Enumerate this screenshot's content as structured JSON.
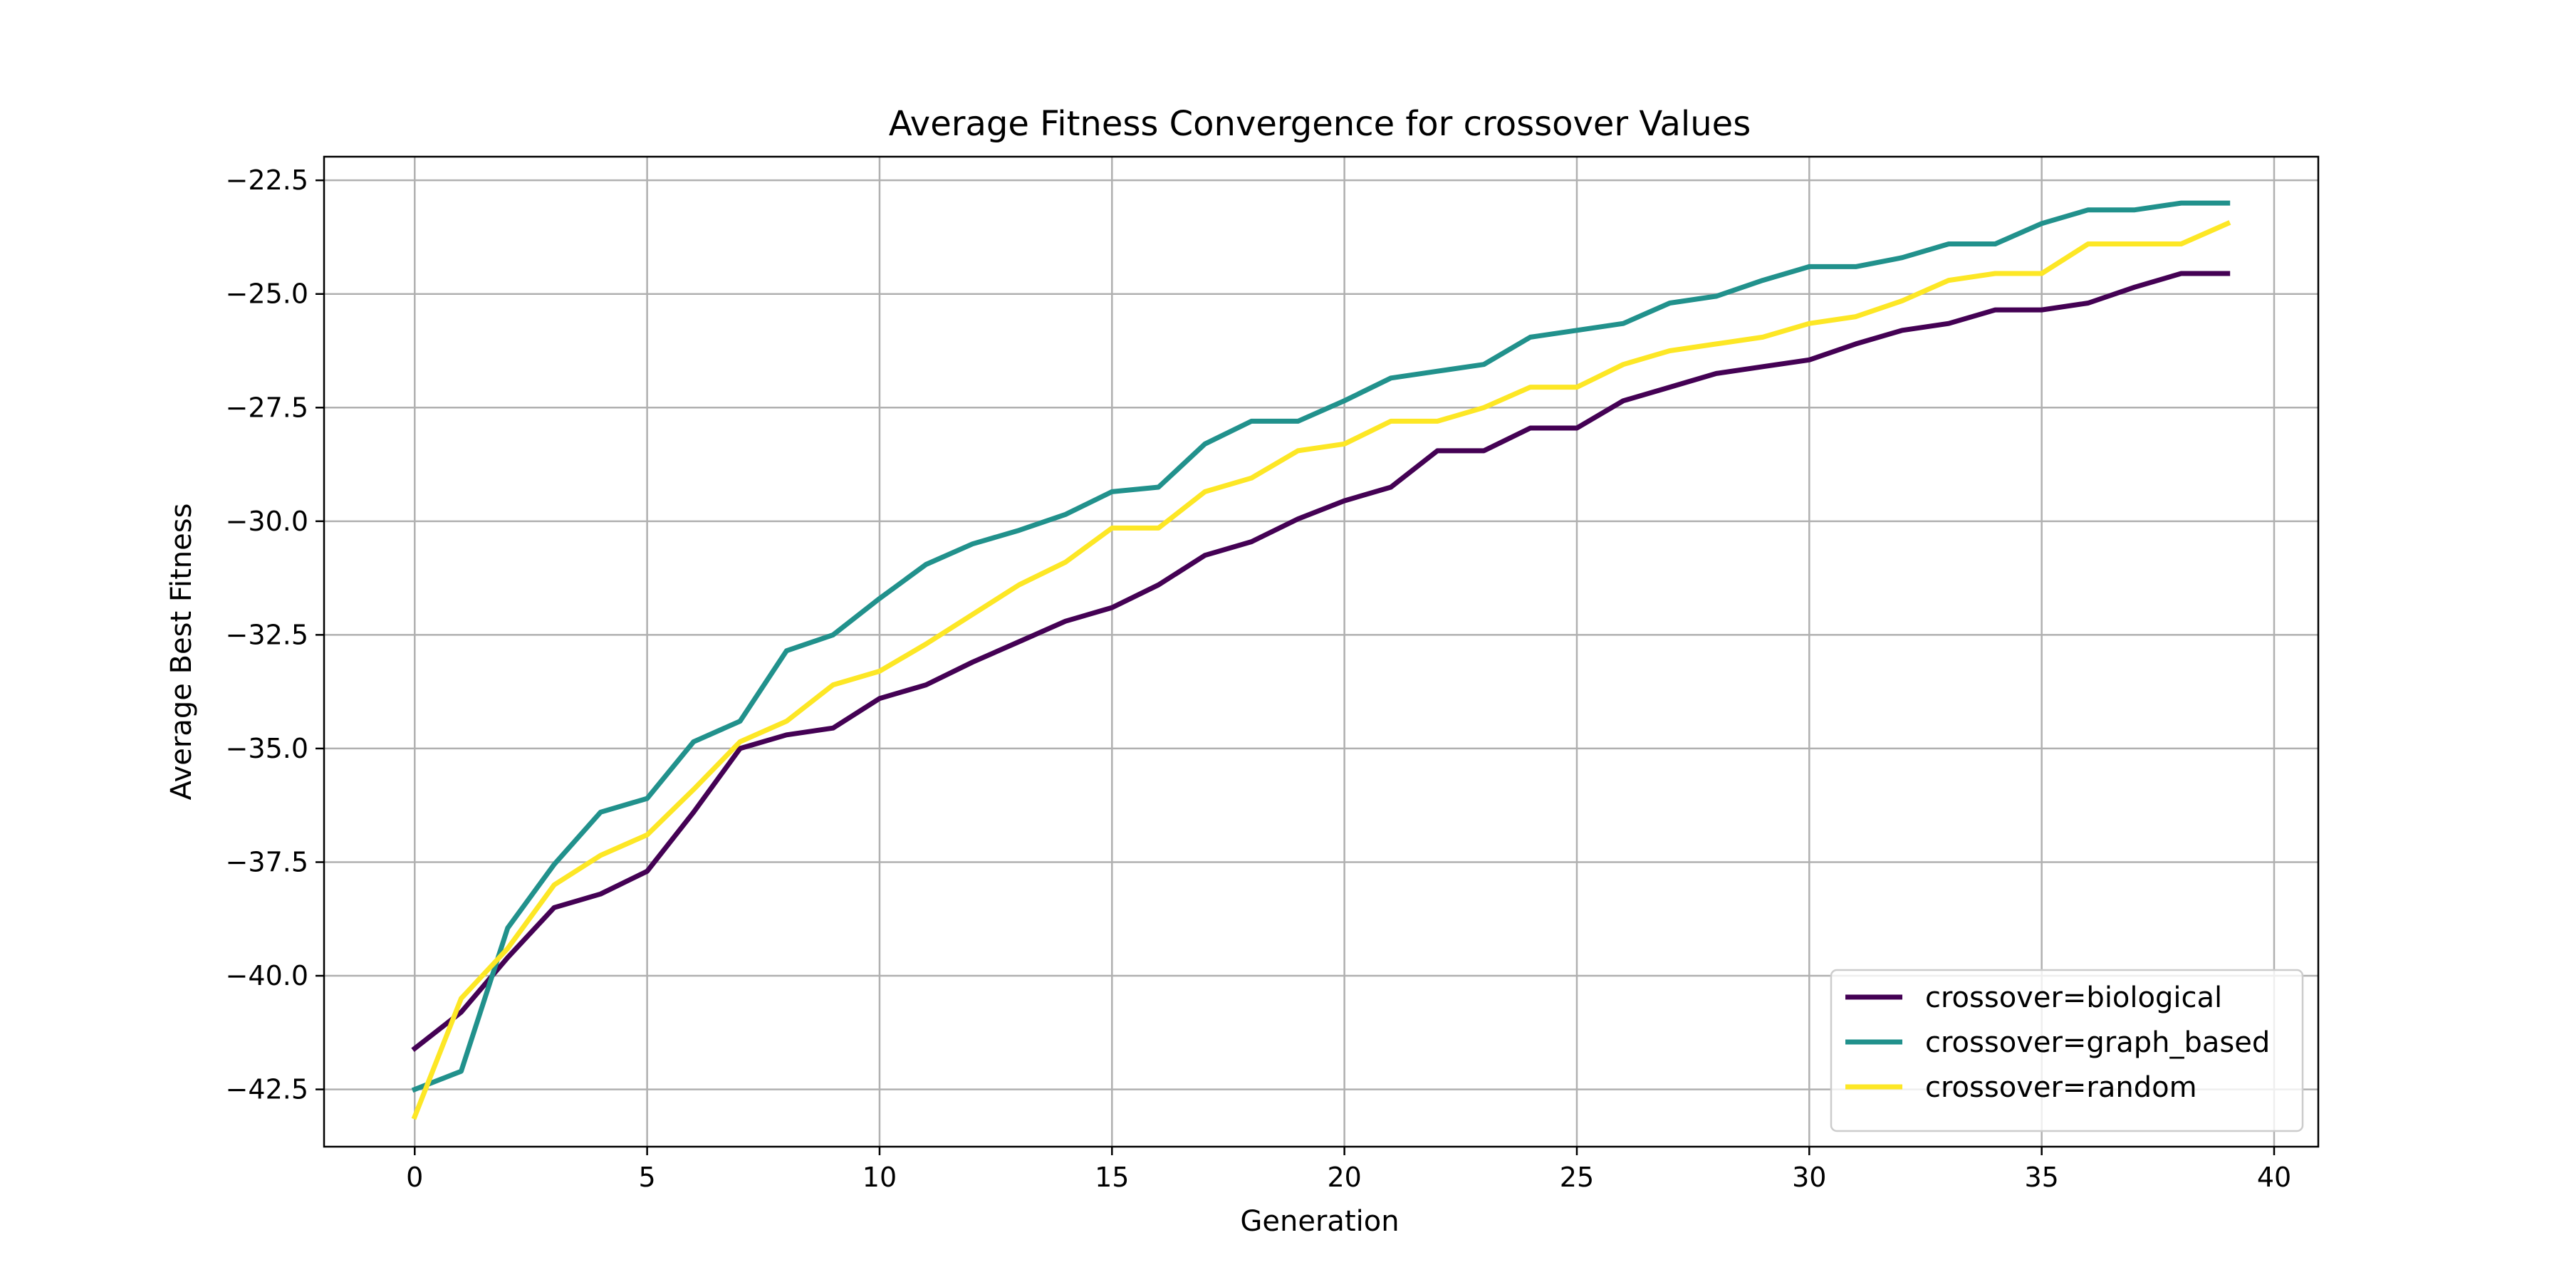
{
  "chart_data": {
    "type": "line",
    "title": "Average Fitness Convergence for crossover Values",
    "xlabel": "Generation",
    "ylabel": "Average Best Fitness",
    "xlim": [
      -1.95,
      40.95
    ],
    "ylim": [
      -43.76,
      -21.98
    ],
    "xticks": [
      0,
      5,
      10,
      15,
      20,
      25,
      30,
      35,
      40
    ],
    "yticks": [
      -42.5,
      -40.0,
      -37.5,
      -35.0,
      -32.5,
      -30.0,
      -27.5,
      -25.0,
      -22.5
    ],
    "grid": true,
    "legend_position": "lower-right",
    "x": [
      0,
      1,
      2,
      3,
      4,
      5,
      6,
      7,
      8,
      9,
      10,
      11,
      12,
      13,
      14,
      15,
      16,
      17,
      18,
      19,
      20,
      21,
      22,
      23,
      24,
      25,
      26,
      27,
      28,
      29,
      30,
      31,
      32,
      33,
      34,
      35,
      36,
      37,
      38,
      39
    ],
    "series": [
      {
        "name": "crossover=biological",
        "color": "#440154",
        "values": [
          -41.6,
          -40.8,
          -39.6,
          -38.5,
          -38.2,
          -37.7,
          -36.4,
          -35.0,
          -34.7,
          -34.55,
          -33.9,
          -33.6,
          -33.1,
          -32.65,
          -32.2,
          -31.9,
          -31.4,
          -30.75,
          -30.45,
          -29.95,
          -29.55,
          -29.25,
          -28.45,
          -28.45,
          -27.95,
          -27.95,
          -27.35,
          -27.05,
          -26.75,
          -26.6,
          -26.45,
          -26.1,
          -25.8,
          -25.65,
          -25.35,
          -25.35,
          -25.2,
          -24.85,
          -24.55,
          -24.55
        ]
      },
      {
        "name": "crossover=graph_based",
        "color": "#21918c",
        "values": [
          -42.5,
          -42.1,
          -38.95,
          -37.55,
          -36.4,
          -36.1,
          -34.85,
          -34.4,
          -32.85,
          -32.5,
          -31.7,
          -30.95,
          -30.5,
          -30.2,
          -29.85,
          -29.35,
          -29.25,
          -28.3,
          -27.8,
          -27.8,
          -27.35,
          -26.85,
          -26.7,
          -26.55,
          -25.95,
          -25.8,
          -25.65,
          -25.2,
          -25.05,
          -24.7,
          -24.4,
          -24.4,
          -24.2,
          -23.9,
          -23.9,
          -23.45,
          -23.15,
          -23.15,
          -23.0,
          -23.0
        ]
      },
      {
        "name": "crossover=random",
        "color": "#fde725",
        "values": [
          -43.1,
          -40.5,
          -39.4,
          -38.0,
          -37.35,
          -36.9,
          -35.9,
          -34.85,
          -34.4,
          -33.6,
          -33.3,
          -32.7,
          -32.05,
          -31.4,
          -30.9,
          -30.15,
          -30.15,
          -29.35,
          -29.05,
          -28.45,
          -28.3,
          -27.8,
          -27.8,
          -27.5,
          -27.05,
          -27.05,
          -26.55,
          -26.25,
          -26.1,
          -25.95,
          -25.65,
          -25.5,
          -25.15,
          -24.7,
          -24.55,
          -24.55,
          -23.9,
          -23.9,
          -23.9,
          -23.45
        ]
      }
    ]
  }
}
